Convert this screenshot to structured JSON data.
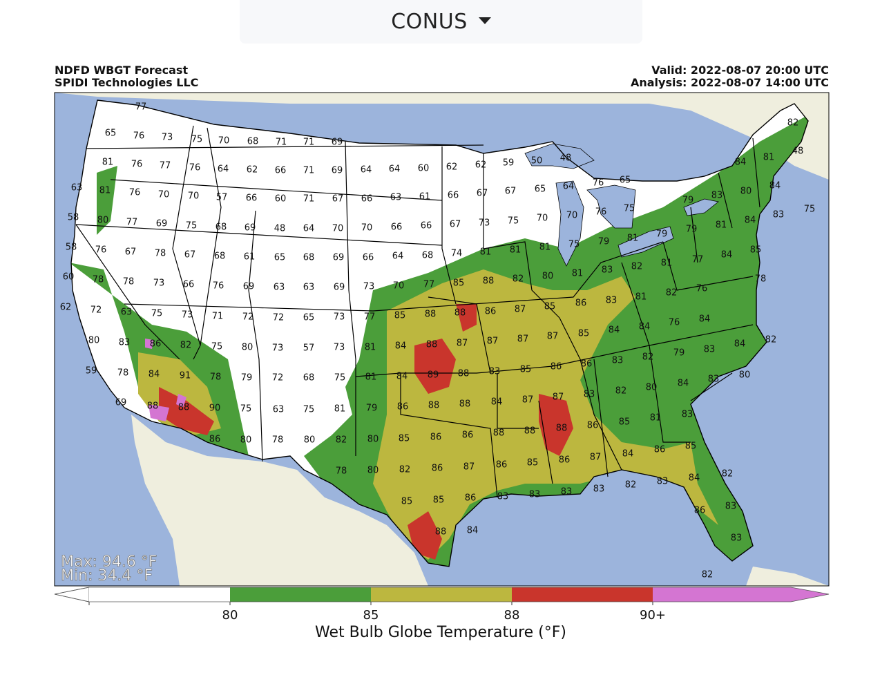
{
  "region_selector": {
    "value": "CONUS"
  },
  "header": {
    "left_line1": "NDFD WBGT Forecast",
    "left_line2": "SPIDI Technologies LLC",
    "right_line1": "Valid: 2022-08-07 20:00 UTC",
    "right_line2": "Analysis: 2022-08-07 14:00 UTC"
  },
  "stats": {
    "max": "Max: 94.6 °F",
    "min": "Min: 34.4 °F"
  },
  "colorbar": {
    "title": "Wet Bulb Globe Temperature (°F)",
    "ticks": [
      "80",
      "85",
      "88",
      "90+"
    ],
    "colors": [
      "#ffffff",
      "#4b9e3a",
      "#bcb73f",
      "#c9352c",
      "#d475d2"
    ]
  },
  "colors": {
    "ocean": "#9cb4dc",
    "land_outside": "#efeede",
    "lake": "#9cb4dc",
    "cat0": "#ffffff",
    "cat1": "#4b9e3a",
    "cat2": "#bcb73f",
    "cat3": "#c9352c",
    "cat4": "#d475d2"
  },
  "station_values": [
    [
      "77",
      204,
      155
    ],
    [
      "65",
      160,
      193
    ],
    [
      "76",
      201,
      197
    ],
    [
      "73",
      242,
      199
    ],
    [
      "75",
      285,
      202
    ],
    [
      "70",
      324,
      204
    ],
    [
      "68",
      366,
      205
    ],
    [
      "71",
      407,
      206
    ],
    [
      "71",
      447,
      206
    ],
    [
      "69",
      488,
      206
    ],
    [
      "81",
      156,
      235
    ],
    [
      "76",
      198,
      238
    ],
    [
      "77",
      239,
      240
    ],
    [
      "76",
      282,
      243
    ],
    [
      "64",
      323,
      245
    ],
    [
      "62",
      365,
      246
    ],
    [
      "66",
      406,
      247
    ],
    [
      "71",
      447,
      247
    ],
    [
      "69",
      488,
      247
    ],
    [
      "64",
      530,
      246
    ],
    [
      "64",
      571,
      245
    ],
    [
      "60",
      613,
      244
    ],
    [
      "62",
      654,
      242
    ],
    [
      "62",
      696,
      239
    ],
    [
      "59",
      736,
      236
    ],
    [
      "50",
      777,
      233
    ],
    [
      "48",
      819,
      229
    ],
    [
      "84",
      1072,
      235
    ],
    [
      "81",
      1113,
      228
    ],
    [
      "82",
      1148,
      178
    ],
    [
      "48",
      1155,
      219
    ],
    [
      "63",
      111,
      272
    ],
    [
      "81",
      152,
      276
    ],
    [
      "76",
      195,
      279
    ],
    [
      "70",
      237,
      282
    ],
    [
      "70",
      280,
      284
    ],
    [
      "57",
      321,
      286
    ],
    [
      "66",
      364,
      287
    ],
    [
      "60",
      406,
      288
    ],
    [
      "71",
      447,
      288
    ],
    [
      "67",
      489,
      288
    ],
    [
      "66",
      531,
      288
    ],
    [
      "63",
      573,
      286
    ],
    [
      "61",
      615,
      285
    ],
    [
      "66",
      656,
      283
    ],
    [
      "67",
      698,
      280
    ],
    [
      "67",
      739,
      277
    ],
    [
      "65",
      782,
      274
    ],
    [
      "64",
      823,
      270
    ],
    [
      "76",
      866,
      265
    ],
    [
      "65",
      905,
      261
    ],
    [
      "79",
      996,
      290
    ],
    [
      "83",
      1038,
      283
    ],
    [
      "80",
      1080,
      277
    ],
    [
      "84",
      1122,
      269
    ],
    [
      "58",
      106,
      315
    ],
    [
      "80",
      149,
      319
    ],
    [
      "77",
      191,
      322
    ],
    [
      "69",
      234,
      324
    ],
    [
      "75",
      277,
      327
    ],
    [
      "68",
      320,
      329
    ],
    [
      "69",
      362,
      330
    ],
    [
      "48",
      405,
      331
    ],
    [
      "64",
      447,
      331
    ],
    [
      "70",
      489,
      331
    ],
    [
      "70",
      531,
      330
    ],
    [
      "66",
      574,
      329
    ],
    [
      "66",
      617,
      327
    ],
    [
      "67",
      659,
      325
    ],
    [
      "73",
      701,
      323
    ],
    [
      "75",
      743,
      320
    ],
    [
      "70",
      785,
      316
    ],
    [
      "70",
      828,
      312
    ],
    [
      "76",
      870,
      307
    ],
    [
      "75",
      911,
      302
    ],
    [
      "79",
      1001,
      332
    ],
    [
      "81",
      1044,
      326
    ],
    [
      "84",
      1086,
      319
    ],
    [
      "83",
      1127,
      311
    ],
    [
      "75",
      1172,
      303
    ],
    [
      "58",
      103,
      358
    ],
    [
      "76",
      146,
      362
    ],
    [
      "67",
      189,
      365
    ],
    [
      "78",
      232,
      367
    ],
    [
      "67",
      275,
      369
    ],
    [
      "68",
      318,
      371
    ],
    [
      "61",
      361,
      372
    ],
    [
      "65",
      405,
      373
    ],
    [
      "68",
      447,
      373
    ],
    [
      "69",
      490,
      373
    ],
    [
      "66",
      533,
      373
    ],
    [
      "64",
      576,
      371
    ],
    [
      "68",
      619,
      370
    ],
    [
      "74",
      661,
      367
    ],
    [
      "81",
      703,
      365
    ],
    [
      "81",
      746,
      362
    ],
    [
      "81",
      789,
      358
    ],
    [
      "75",
      831,
      354
    ],
    [
      "79",
      874,
      350
    ],
    [
      "81",
      916,
      345
    ],
    [
      "79",
      958,
      339
    ],
    [
      "77",
      1010,
      376
    ],
    [
      "84",
      1052,
      369
    ],
    [
      "85",
      1094,
      362
    ],
    [
      "60",
      99,
      401
    ],
    [
      "78",
      142,
      405
    ],
    [
      "78",
      186,
      408
    ],
    [
      "73",
      230,
      410
    ],
    [
      "66",
      273,
      412
    ],
    [
      "76",
      316,
      414
    ],
    [
      "69",
      360,
      415
    ],
    [
      "63",
      404,
      416
    ],
    [
      "63",
      447,
      416
    ],
    [
      "69",
      491,
      416
    ],
    [
      "73",
      534,
      415
    ],
    [
      "70",
      577,
      414
    ],
    [
      "77",
      621,
      412
    ],
    [
      "85",
      664,
      410
    ],
    [
      "88",
      707,
      407
    ],
    [
      "82",
      750,
      404
    ],
    [
      "80",
      793,
      400
    ],
    [
      "81",
      836,
      396
    ],
    [
      "83",
      879,
      391
    ],
    [
      "82",
      922,
      386
    ],
    [
      "81",
      965,
      381
    ],
    [
      "76",
      1016,
      418
    ],
    [
      "78",
      1101,
      404
    ],
    [
      "62",
      95,
      445
    ],
    [
      "72",
      139,
      449
    ],
    [
      "63",
      183,
      452
    ],
    [
      "75",
      227,
      454
    ],
    [
      "73",
      271,
      456
    ],
    [
      "71",
      315,
      458
    ],
    [
      "72",
      359,
      459
    ],
    [
      "72",
      403,
      460
    ],
    [
      "65",
      447,
      460
    ],
    [
      "73",
      491,
      459
    ],
    [
      "77",
      535,
      459
    ],
    [
      "85",
      579,
      457
    ],
    [
      "88",
      623,
      455
    ],
    [
      "88",
      666,
      453
    ],
    [
      "86",
      710,
      451
    ],
    [
      "87",
      753,
      448
    ],
    [
      "85",
      796,
      444
    ],
    [
      "86",
      841,
      439
    ],
    [
      "83",
      885,
      435
    ],
    [
      "81",
      928,
      430
    ],
    [
      "82",
      972,
      424
    ],
    [
      "84",
      1020,
      462
    ],
    [
      "80",
      136,
      493
    ],
    [
      "83",
      180,
      496
    ],
    [
      "86",
      225,
      498
    ],
    [
      "82",
      269,
      500
    ],
    [
      "75",
      314,
      502
    ],
    [
      "80",
      358,
      503
    ],
    [
      "73",
      402,
      504
    ],
    [
      "57",
      447,
      504
    ],
    [
      "73",
      491,
      503
    ],
    [
      "81",
      536,
      503
    ],
    [
      "84",
      580,
      501
    ],
    [
      "88",
      625,
      499
    ],
    [
      "87",
      669,
      497
    ],
    [
      "87",
      713,
      494
    ],
    [
      "87",
      757,
      491
    ],
    [
      "87",
      800,
      487
    ],
    [
      "85",
      845,
      483
    ],
    [
      "84",
      889,
      478
    ],
    [
      "84",
      933,
      473
    ],
    [
      "76",
      976,
      467
    ],
    [
      "83",
      1027,
      506
    ],
    [
      "84",
      1071,
      498
    ],
    [
      "82",
      1116,
      492
    ],
    [
      "59",
      132,
      537
    ],
    [
      "78",
      178,
      540
    ],
    [
      "84",
      223,
      542
    ],
    [
      "91",
      268,
      544
    ],
    [
      "78",
      312,
      546
    ],
    [
      "79",
      357,
      547
    ],
    [
      "72",
      402,
      547
    ],
    [
      "68",
      447,
      547
    ],
    [
      "75",
      492,
      547
    ],
    [
      "81",
      537,
      546
    ],
    [
      "84",
      582,
      545
    ],
    [
      "89",
      627,
      543
    ],
    [
      "88",
      671,
      541
    ],
    [
      "83",
      716,
      538
    ],
    [
      "85",
      761,
      535
    ],
    [
      "86",
      805,
      531
    ],
    [
      "86",
      849,
      527
    ],
    [
      "83",
      894,
      522
    ],
    [
      "82",
      938,
      517
    ],
    [
      "79",
      983,
      511
    ],
    [
      "83",
      1033,
      549
    ],
    [
      "80",
      1078,
      543
    ],
    [
      "69",
      175,
      583
    ],
    [
      "88",
      221,
      588
    ],
    [
      "88",
      266,
      590
    ],
    [
      "90",
      311,
      591
    ],
    [
      "75",
      356,
      592
    ],
    [
      "63",
      403,
      593
    ],
    [
      "75",
      447,
      593
    ],
    [
      "81",
      492,
      592
    ],
    [
      "79",
      538,
      591
    ],
    [
      "86",
      583,
      589
    ],
    [
      "88",
      628,
      587
    ],
    [
      "88",
      673,
      585
    ],
    [
      "84",
      719,
      582
    ],
    [
      "87",
      764,
      579
    ],
    [
      "87",
      808,
      575
    ],
    [
      "83",
      853,
      571
    ],
    [
      "82",
      899,
      566
    ],
    [
      "80",
      943,
      561
    ],
    [
      "84",
      989,
      555
    ],
    [
      "86",
      311,
      636
    ],
    [
      "80",
      356,
      637
    ],
    [
      "78",
      402,
      637
    ],
    [
      "80",
      448,
      637
    ],
    [
      "82",
      494,
      637
    ],
    [
      "80",
      540,
      636
    ],
    [
      "85",
      585,
      635
    ],
    [
      "86",
      631,
      633
    ],
    [
      "86",
      677,
      630
    ],
    [
      "88",
      722,
      627
    ],
    [
      "88",
      767,
      624
    ],
    [
      "88",
      813,
      620
    ],
    [
      "86",
      858,
      616
    ],
    [
      "85",
      904,
      611
    ],
    [
      "81",
      949,
      605
    ],
    [
      "83",
      995,
      600
    ],
    [
      "78",
      494,
      682
    ],
    [
      "80",
      540,
      681
    ],
    [
      "82",
      586,
      680
    ],
    [
      "86",
      633,
      678
    ],
    [
      "87",
      679,
      676
    ],
    [
      "86",
      726,
      673
    ],
    [
      "85",
      771,
      670
    ],
    [
      "86",
      817,
      666
    ],
    [
      "87",
      862,
      662
    ],
    [
      "84",
      909,
      657
    ],
    [
      "86",
      955,
      651
    ],
    [
      "85",
      1000,
      646
    ],
    [
      "85",
      589,
      726
    ],
    [
      "85",
      635,
      724
    ],
    [
      "86",
      681,
      721
    ],
    [
      "83",
      728,
      719
    ],
    [
      "83",
      774,
      716
    ],
    [
      "83",
      820,
      712
    ],
    [
      "83",
      867,
      708
    ],
    [
      "82",
      913,
      702
    ],
    [
      "83",
      959,
      697
    ],
    [
      "84",
      1005,
      692
    ],
    [
      "82",
      1053,
      686
    ],
    [
      "88",
      638,
      770
    ],
    [
      "84",
      684,
      768
    ],
    [
      "86",
      1013,
      739
    ],
    [
      "83",
      1058,
      733
    ],
    [
      "83",
      1066,
      779
    ],
    [
      "82",
      1024,
      832
    ]
  ]
}
